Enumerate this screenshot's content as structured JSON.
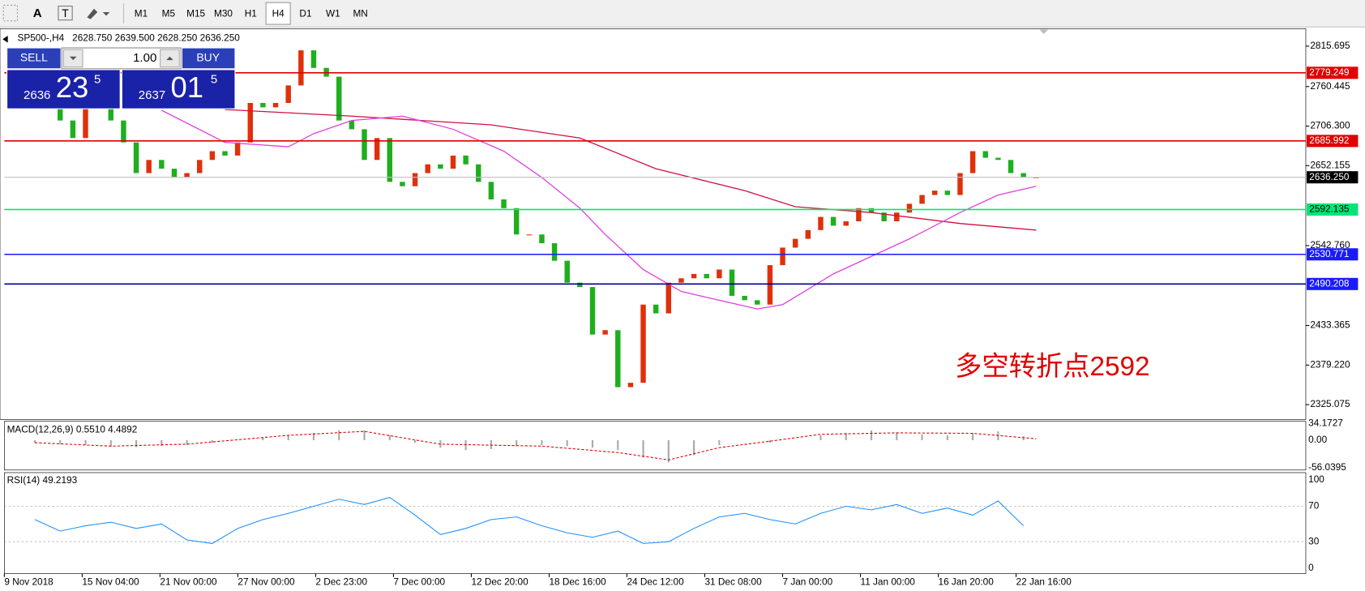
{
  "toolbar": {
    "tools": [
      "A",
      "T"
    ],
    "timeframes": [
      "M1",
      "M5",
      "M15",
      "M30",
      "H1",
      "H4",
      "D1",
      "W1",
      "MN"
    ],
    "active": "H4"
  },
  "header": {
    "symbol": "SP500-,H4",
    "ohlc": "2628.750 2639.500 2628.250 2636.250"
  },
  "trade_panel": {
    "sell": "SELL",
    "buy": "BUY",
    "lot": "1.00",
    "sell_price": {
      "big": "2636",
      "main": "23",
      "small": "5"
    },
    "buy_price": {
      "big": "2637",
      "main": "01",
      "small": "5"
    }
  },
  "price_axis": {
    "ylim": [
      2304.7,
      2839.6
    ],
    "ticks": [
      2815.695,
      2760.445,
      {
        "value": 2706.3,
        "label": "2706.300"
      },
      2652.155,
      {
        "value": 2542.76,
        "label": "2542.760"
      },
      2433.365,
      {
        "value": 2379.22,
        "label": "2379.220"
      },
      2325.075
    ]
  },
  "levels": [
    {
      "value": 2779.249,
      "color": "#e00000",
      "label_color": "#e00000"
    },
    {
      "value": 2685.992,
      "color": "#e00000",
      "label_color": "#e00000"
    },
    {
      "value": 2592.135,
      "color": "#00e676",
      "label_color": "#00e676"
    },
    {
      "value": 2530.771,
      "color": "#1a1aff",
      "label_color": "#1a1aff"
    },
    {
      "value": 2490.208,
      "color": "#000090",
      "label_color": "#1a1aff"
    }
  ],
  "current_price": {
    "value": 2636.25,
    "value_label": "2636.250"
  },
  "annotation": "多空转折点2592",
  "candles": {
    "up_color": "#e0300a",
    "down_color": "#1fae1f",
    "closes": [
      2732,
      2732,
      2714,
      2690,
      2732,
      2762,
      2714,
      2684,
      2642,
      2660,
      2648,
      2636,
      2642,
      2660,
      2672,
      2666,
      2684,
      2738,
      2732,
      2738,
      2762,
      2810,
      2786,
      2774,
      2714,
      2702,
      2660,
      2690,
      2630,
      2624,
      2642,
      2654,
      2648,
      2666,
      2654,
      2630,
      2606,
      2594,
      2558,
      2558,
      2546,
      2522,
      2492,
      2486,
      2421,
      2427,
      2349,
      2355,
      2462,
      2450,
      2492,
      2498,
      2504,
      2498,
      2510,
      2474,
      2468,
      2462,
      2516,
      2540,
      2552,
      2564,
      2582,
      2570,
      2576,
      2594,
      2588,
      2576,
      2588,
      2600,
      2612,
      2618,
      2612,
      2642,
      2672,
      2663,
      2660,
      2642,
      2636,
      2636.25
    ]
  },
  "ma_fast": {
    "color": "#e040e0",
    "x": [
      10,
      15,
      20,
      22,
      25,
      29,
      33,
      37,
      40,
      43,
      45,
      48,
      51,
      54,
      57,
      59,
      63,
      66,
      69,
      73,
      76,
      79
    ],
    "values": [
      2728,
      2684,
      2678,
      2696,
      2714,
      2720,
      2702,
      2672,
      2636,
      2594,
      2558,
      2510,
      2480,
      2468,
      2456,
      2462,
      2504,
      2528,
      2552,
      2588,
      2612,
      2624
    ]
  },
  "ma_slow": {
    "color": "#d01040",
    "x": [
      15,
      25,
      36,
      43,
      49,
      56,
      60,
      66,
      73,
      79
    ],
    "values": [
      2729,
      2720,
      2708,
      2690,
      2648,
      2618,
      2596,
      2588,
      2573,
      2564
    ]
  },
  "macd": {
    "label": "MACD(12,26,9) 0.5510 4.4892",
    "ylim": [
      -60.5,
      38.5
    ],
    "ticks": [
      34.1727,
      {
        "value": 0,
        "label": "0.00"
      },
      -56.0395
    ],
    "histogram": {
      "x": [
        0,
        2,
        4,
        6,
        8,
        10,
        12,
        14,
        16,
        18,
        20,
        22,
        24,
        26,
        28,
        30,
        32,
        34,
        36,
        38,
        40,
        42,
        44,
        46,
        48,
        50,
        52,
        54,
        56,
        58,
        60,
        62,
        64,
        66,
        68,
        70,
        72,
        74,
        76,
        78
      ],
      "values": [
        -5,
        -8,
        -10,
        -12,
        -14,
        -12,
        -10,
        -5,
        0,
        5,
        10,
        15,
        20,
        20,
        10,
        -5,
        -15,
        -20,
        -18,
        -12,
        -10,
        -12,
        -15,
        -20,
        -35,
        -45,
        -30,
        -10,
        0,
        -5,
        0,
        10,
        15,
        20,
        15,
        12,
        10,
        15,
        18,
        8
      ]
    },
    "signal": {
      "x": [
        0,
        6,
        12,
        20,
        26,
        32,
        40,
        46,
        50,
        54,
        58,
        62,
        68,
        74,
        79
      ],
      "values": [
        -5,
        -12,
        -8,
        10,
        18,
        -8,
        -12,
        -25,
        -40,
        -15,
        -2,
        12,
        15,
        14,
        3
      ]
    }
  },
  "rsi": {
    "label": "RSI(14) 49.2193",
    "ylim": [
      -6,
      108
    ],
    "ticks": [
      100,
      70,
      30,
      0
    ],
    "color": "#1e90ff",
    "x": [
      0,
      2,
      4,
      6,
      8,
      10,
      12,
      14,
      16,
      18,
      20,
      22,
      24,
      26,
      28,
      30,
      32,
      34,
      36,
      38,
      40,
      42,
      44,
      46,
      48,
      50,
      52,
      54,
      56,
      58,
      60,
      62,
      64,
      66,
      68,
      70,
      72,
      74,
      76,
      78
    ],
    "values": [
      55,
      42,
      48,
      52,
      45,
      50,
      32,
      28,
      45,
      55,
      62,
      70,
      78,
      72,
      80,
      60,
      38,
      45,
      55,
      58,
      48,
      40,
      35,
      42,
      28,
      30,
      45,
      58,
      62,
      55,
      50,
      62,
      70,
      66,
      72,
      62,
      68,
      60,
      76,
      48
    ]
  },
  "time_axis": [
    "9 Nov 2018",
    "15 Nov 04:00",
    "21 Nov 00:00",
    "27 Nov 00:00",
    "2 Dec 23:00",
    "7 Dec 00:00",
    "12 Dec 20:00",
    "18 Dec 16:00",
    "24 Dec 12:00",
    "31 Dec 08:00",
    "7 Jan 00:00",
    "11 Jan 00:00",
    "16 Jan 20:00",
    "22 Jan 16:00"
  ]
}
